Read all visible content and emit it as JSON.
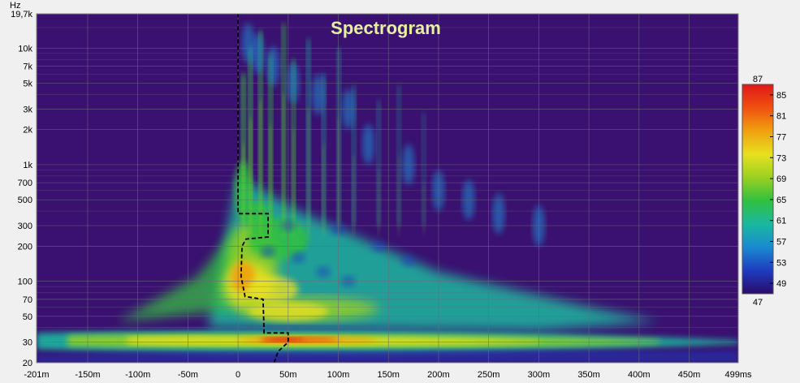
{
  "chart_data": {
    "type": "heatmap",
    "title": "Spectrogram",
    "ylabel": "Hz",
    "xlabel": "",
    "x_unit": "ms",
    "xlim": [
      -201,
      499
    ],
    "ylim": [
      20,
      19700
    ],
    "y_scale": "log",
    "grid": true,
    "x_ticks": [
      {
        "value": -201,
        "label": "-201m"
      },
      {
        "value": -150,
        "label": "-150m"
      },
      {
        "value": -100,
        "label": "-100m"
      },
      {
        "value": -50,
        "label": "-50m"
      },
      {
        "value": 0,
        "label": "0"
      },
      {
        "value": 50,
        "label": "50m"
      },
      {
        "value": 100,
        "label": "100m"
      },
      {
        "value": 150,
        "label": "150m"
      },
      {
        "value": 200,
        "label": "200m"
      },
      {
        "value": 250,
        "label": "250m"
      },
      {
        "value": 300,
        "label": "300m"
      },
      {
        "value": 350,
        "label": "350m"
      },
      {
        "value": 400,
        "label": "400m"
      },
      {
        "value": 450,
        "label": "450m"
      },
      {
        "value": 499,
        "label": "499ms"
      }
    ],
    "y_ticks": [
      {
        "value": 20,
        "label": "20"
      },
      {
        "value": 30,
        "label": "30"
      },
      {
        "value": 50,
        "label": "50"
      },
      {
        "value": 70,
        "label": "70"
      },
      {
        "value": 100,
        "label": "100"
      },
      {
        "value": 200,
        "label": "200"
      },
      {
        "value": 300,
        "label": "300"
      },
      {
        "value": 500,
        "label": "500"
      },
      {
        "value": 700,
        "label": "700"
      },
      {
        "value": 1000,
        "label": "1k"
      },
      {
        "value": 2000,
        "label": "2k"
      },
      {
        "value": 3000,
        "label": "3k"
      },
      {
        "value": 5000,
        "label": "5k"
      },
      {
        "value": 7000,
        "label": "7k"
      },
      {
        "value": 10000,
        "label": "10k"
      },
      {
        "value": 19700,
        "label": "19,7k"
      }
    ],
    "colorbar": {
      "min": 47,
      "max": 87,
      "min_label": "47",
      "max_label": "87",
      "tick_labels": [
        "85",
        "81",
        "77",
        "73",
        "69",
        "65",
        "61",
        "57",
        "53",
        "49"
      ]
    },
    "peak_time_curve": {
      "style": "dashed",
      "color": "#000000",
      "points": [
        {
          "f": 20,
          "t": 36
        },
        {
          "f": 25,
          "t": 40
        },
        {
          "f": 30,
          "t": 50
        },
        {
          "f": 36,
          "t": 50
        },
        {
          "f": 36,
          "t": 26
        },
        {
          "f": 70,
          "t": 25
        },
        {
          "f": 74,
          "t": 7
        },
        {
          "f": 110,
          "t": 3
        },
        {
          "f": 200,
          "t": 4
        },
        {
          "f": 230,
          "t": 8
        },
        {
          "f": 240,
          "t": 30
        },
        {
          "f": 380,
          "t": 30
        },
        {
          "f": 380,
          "t": 0
        },
        {
          "f": 19700,
          "t": 0
        }
      ]
    }
  },
  "colors": {
    "plot_background": "#3a1070",
    "grid": "#6a6a7a",
    "title": "#e6f0a0",
    "colormap": [
      "#2a0a6a",
      "#1e3cc0",
      "#1a8ad0",
      "#1ab8a0",
      "#30c040",
      "#9ad020",
      "#e8e020",
      "#f0a010",
      "#f05010",
      "#e01818"
    ]
  }
}
